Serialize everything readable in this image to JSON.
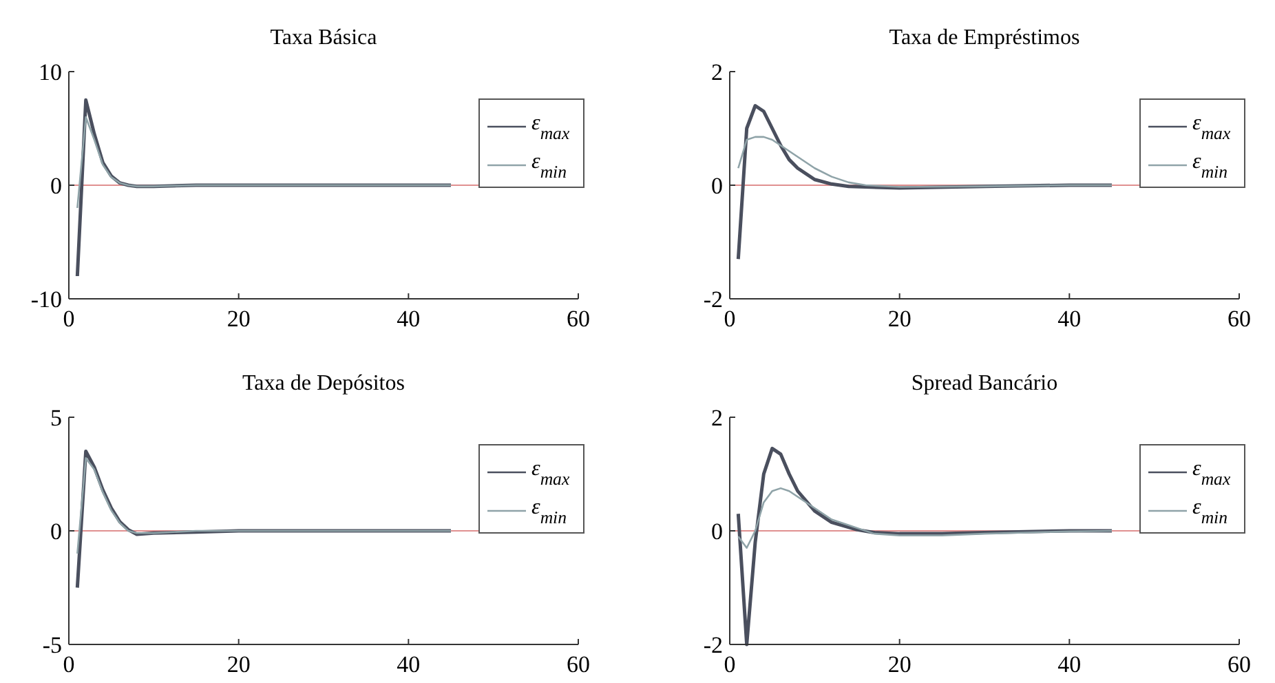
{
  "chart_data": [
    {
      "type": "line",
      "title": "Taxa Básica",
      "x": [
        1,
        2,
        3,
        4,
        5,
        6,
        7,
        8,
        10,
        15,
        20,
        30,
        40,
        45
      ],
      "xlim": [
        0,
        60
      ],
      "xticks": [
        0,
        20,
        40,
        60
      ],
      "ylim": [
        -10,
        10
      ],
      "yticks": [
        -10,
        0,
        10
      ],
      "legend": "top right",
      "ref_lines": [
        {
          "axis": "y",
          "value": 0,
          "color": "#e09090"
        }
      ],
      "series": [
        {
          "name": "ε$_{max}$",
          "color": "#4a4f5e",
          "values": [
            -8,
            7.5,
            4.5,
            2,
            0.8,
            0.2,
            0,
            -0.1,
            -0.1,
            0,
            0,
            0,
            0,
            0
          ]
        },
        {
          "name": "ε$_{min}$",
          "color": "#8fa3a8",
          "values": [
            -2,
            6,
            4,
            1.8,
            0.7,
            0.2,
            0,
            -0.1,
            -0.1,
            0,
            0,
            0,
            0,
            0
          ]
        }
      ]
    },
    {
      "type": "line",
      "title": "Taxa de Empréstimos",
      "x": [
        1,
        2,
        3,
        4,
        5,
        6,
        7,
        8,
        10,
        12,
        14,
        16,
        20,
        30,
        40,
        45
      ],
      "xlim": [
        0,
        60
      ],
      "xticks": [
        0,
        20,
        40,
        60
      ],
      "ylim": [
        -2,
        2
      ],
      "yticks": [
        -2,
        0,
        2
      ],
      "legend": "top right",
      "ref_lines": [
        {
          "axis": "y",
          "value": 0,
          "color": "#e09090"
        }
      ],
      "series": [
        {
          "name": "ε$_{max}$",
          "color": "#4a4f5e",
          "values": [
            -1.3,
            1.0,
            1.4,
            1.3,
            1.0,
            0.7,
            0.45,
            0.3,
            0.1,
            0.02,
            -0.02,
            -0.03,
            -0.05,
            -0.02,
            0,
            0
          ]
        },
        {
          "name": "ε$_{min}$",
          "color": "#8fa3a8",
          "values": [
            0.3,
            0.8,
            0.85,
            0.85,
            0.8,
            0.7,
            0.6,
            0.5,
            0.3,
            0.15,
            0.05,
            0,
            -0.03,
            -0.02,
            0,
            0
          ]
        }
      ]
    },
    {
      "type": "line",
      "title": "Taxa de Depósitos",
      "x": [
        1,
        2,
        3,
        4,
        5,
        6,
        7,
        8,
        10,
        15,
        20,
        30,
        40,
        45
      ],
      "xlim": [
        0,
        60
      ],
      "xticks": [
        0,
        20,
        40,
        60
      ],
      "ylim": [
        -5,
        5
      ],
      "yticks": [
        -5,
        0,
        5
      ],
      "legend": "top right",
      "ref_lines": [
        {
          "axis": "y",
          "value": 0,
          "color": "#e09090"
        }
      ],
      "series": [
        {
          "name": "ε$_{max}$",
          "color": "#4a4f5e",
          "values": [
            -2.5,
            3.5,
            2.8,
            1.8,
            1.0,
            0.4,
            0.05,
            -0.15,
            -0.1,
            -0.05,
            0,
            0,
            0,
            0
          ]
        },
        {
          "name": "ε$_{min}$",
          "color": "#8fa3a8",
          "values": [
            -1,
            3.2,
            2.7,
            1.7,
            0.9,
            0.35,
            0,
            -0.1,
            -0.1,
            0,
            0,
            0,
            0,
            0
          ]
        }
      ]
    },
    {
      "type": "line",
      "title": "Spread Bancário",
      "x": [
        1,
        2,
        3,
        4,
        5,
        6,
        7,
        8,
        10,
        12,
        15,
        17,
        20,
        25,
        30,
        40,
        45
      ],
      "xlim": [
        0,
        60
      ],
      "xticks": [
        0,
        20,
        40,
        60
      ],
      "ylim": [
        -2,
        2
      ],
      "yticks": [
        -2,
        0,
        2
      ],
      "legend": "top right",
      "ref_lines": [
        {
          "axis": "y",
          "value": 0,
          "color": "#e09090"
        }
      ],
      "series": [
        {
          "name": "ε$_{max}$",
          "color": "#4a4f5e",
          "values": [
            0.3,
            -2,
            -0.2,
            1.0,
            1.45,
            1.35,
            1.0,
            0.7,
            0.35,
            0.15,
            0.02,
            -0.03,
            -0.05,
            -0.05,
            -0.03,
            0,
            0
          ]
        },
        {
          "name": "ε$_{min}$",
          "color": "#8fa3a8",
          "values": [
            -0.1,
            -0.3,
            0,
            0.5,
            0.7,
            0.75,
            0.7,
            0.6,
            0.4,
            0.2,
            0.05,
            -0.05,
            -0.08,
            -0.08,
            -0.05,
            -0.01,
            0
          ]
        }
      ]
    }
  ]
}
